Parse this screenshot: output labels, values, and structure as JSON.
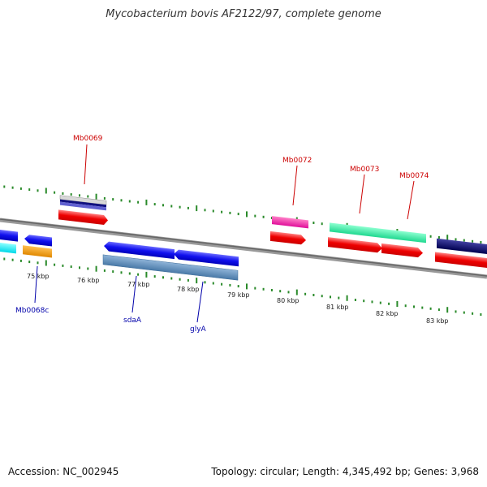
{
  "header": {
    "title": "Mycobacterium bovis AF2122/97, complete genome"
  },
  "footer": {
    "accession": "Accession: NC_002945",
    "summary": "Topology: circular; Length: 4,345,492 bp; Genes: 3,968"
  },
  "colors": {
    "backbone": "#777777",
    "tick": "#2a8a2a",
    "label_forward": "#cc0000",
    "label_reverse": "#0000aa"
  },
  "ruler": {
    "labels": [
      "75 kbp",
      "76 kbp",
      "77 kbp",
      "78 kbp",
      "79 kbp",
      "80 kbp",
      "81 kbp",
      "82 kbp",
      "83 kbp"
    ]
  },
  "labels": {
    "forward": [
      "Mb0069",
      "Mb0072",
      "Mb0073",
      "Mb0074"
    ],
    "reverse": [
      "Mb0068c",
      "sdaA",
      "glyA"
    ]
  }
}
